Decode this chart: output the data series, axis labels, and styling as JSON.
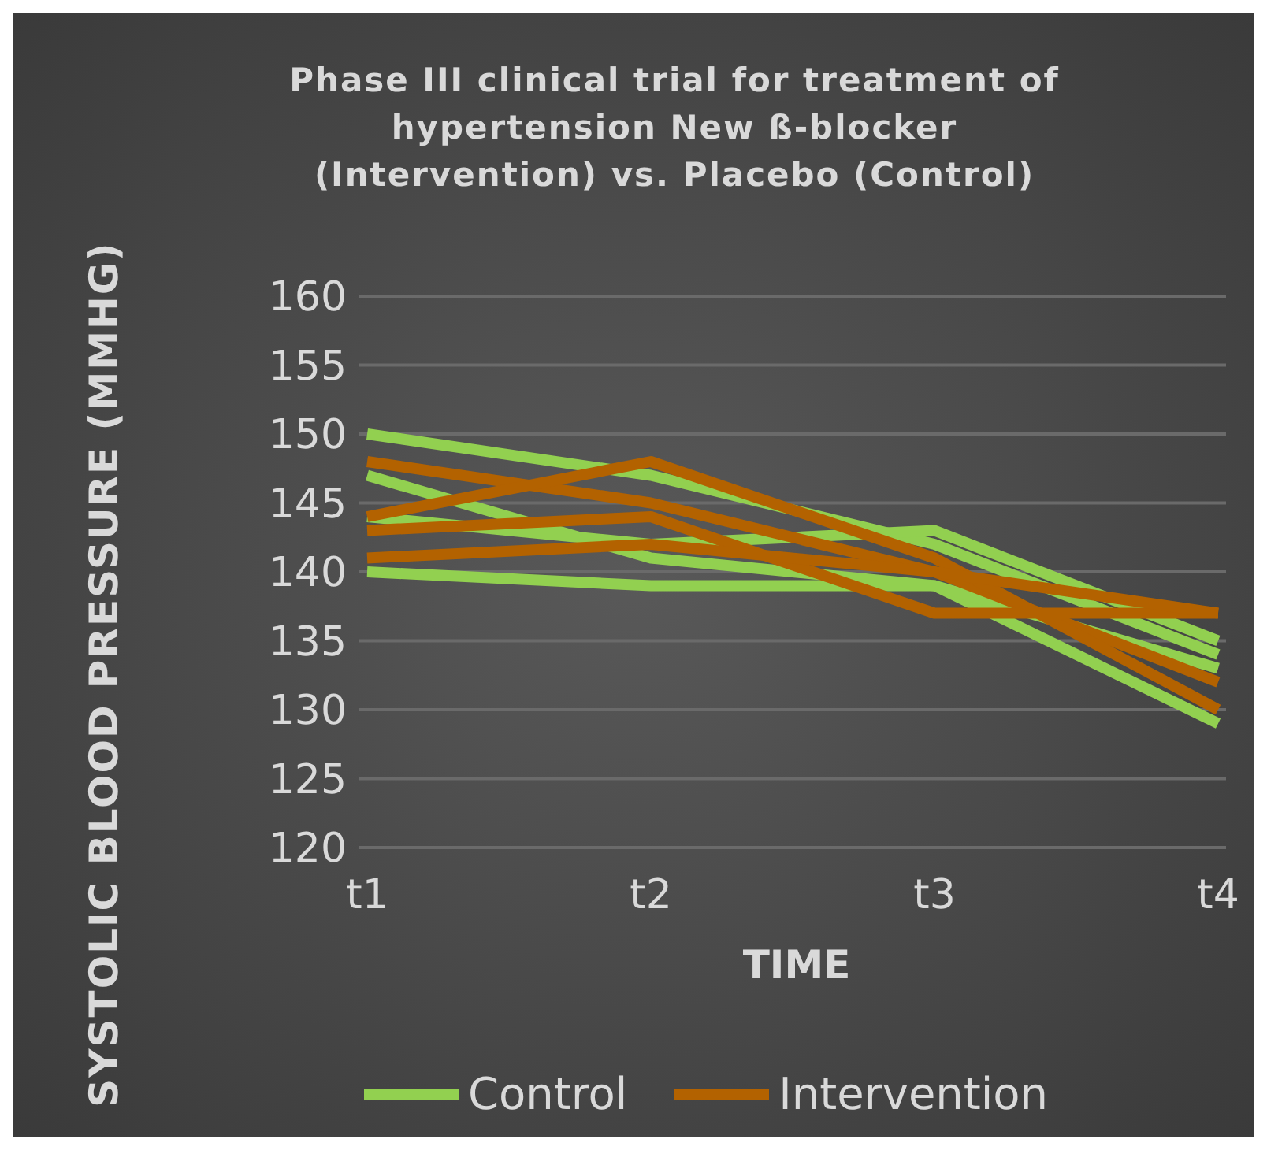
{
  "chart_data": {
    "type": "line",
    "title": "Phase III clinical trial for treatment of hypertension New ß-blocker (Intervention) vs. Placebo (Control)",
    "xlabel": "TIME",
    "ylabel": "SYSTOLIC BLOOD PRESSURE (MMHG)",
    "categories": [
      "t1",
      "t2",
      "t3",
      "t4"
    ],
    "series": [
      {
        "name": "Control",
        "color": "#92d050",
        "values": [
          150,
          147,
          142,
          134
        ]
      },
      {
        "color": "#92d050",
        "values": [
          147,
          141,
          139,
          129
        ]
      },
      {
        "color": "#92d050",
        "values": [
          144,
          142,
          143,
          135
        ]
      },
      {
        "color": "#92d050",
        "values": [
          140,
          139,
          139,
          133
        ]
      },
      {
        "name": "Intervention",
        "color": "#b36200",
        "values": [
          148,
          145,
          140,
          132
        ]
      },
      {
        "color": "#b36200",
        "values": [
          144,
          148,
          141,
          130
        ]
      },
      {
        "color": "#b36200",
        "values": [
          143,
          144,
          137,
          137
        ]
      },
      {
        "color": "#b36200",
        "values": [
          141,
          142,
          140,
          137
        ]
      }
    ],
    "ylim": [
      120,
      160
    ],
    "yticks": [
      120,
      125,
      130,
      135,
      140,
      145,
      150,
      155,
      160
    ],
    "grid": "y",
    "legend": "bottom",
    "marker": "none",
    "line_style": "solid"
  }
}
